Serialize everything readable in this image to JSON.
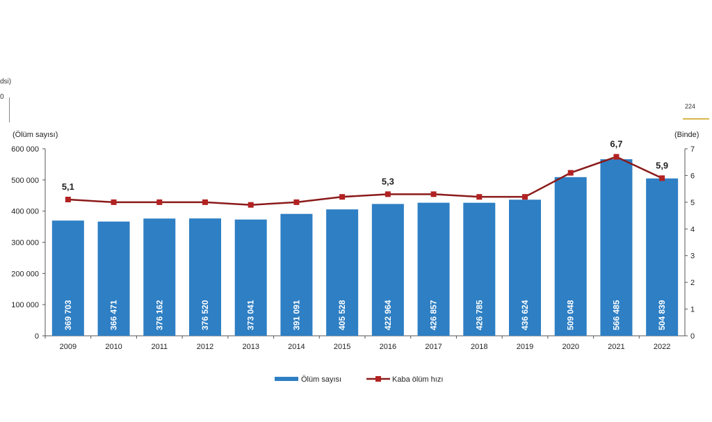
{
  "fragments": {
    "top_left_label": "dsi)",
    "top_left_value": "0",
    "top_right_value": "224"
  },
  "chart_data": {
    "type": "bar+line",
    "categories": [
      "2009",
      "2010",
      "2011",
      "2012",
      "2013",
      "2014",
      "2015",
      "2016",
      "2017",
      "2018",
      "2019",
      "2020",
      "2021",
      "2022"
    ],
    "series": [
      {
        "name": "Ölüm sayısı",
        "type": "bar",
        "axis": "left",
        "color": "#2e7fc4",
        "values": [
          369703,
          366471,
          376162,
          376520,
          373041,
          391091,
          405528,
          422964,
          426857,
          426785,
          436624,
          509048,
          566485,
          504839
        ],
        "labels": [
          "369 703",
          "366 471",
          "376 162",
          "376 520",
          "373 041",
          "391 091",
          "405 528",
          "422 964",
          "426 857",
          "426 785",
          "436 624",
          "509 048",
          "566 485",
          "504 839"
        ]
      },
      {
        "name": "Kaba ölüm hızı",
        "type": "line",
        "axis": "right",
        "color": "#8b1a1a",
        "values": [
          5.1,
          5.0,
          5.0,
          5.0,
          4.9,
          5.0,
          5.2,
          5.3,
          5.3,
          5.2,
          5.2,
          6.1,
          6.7,
          5.9
        ],
        "point_labels": {
          "0": "5,1",
          "7": "5,3",
          "12": "6,7",
          "13": "5,9"
        }
      }
    ],
    "ylabel_left": "(Ölüm sayısı)",
    "ylabel_right": "(Binde)",
    "ylim_left": [
      0,
      600000
    ],
    "ylim_right": [
      0,
      7
    ],
    "yticks_left": [
      "0",
      "100 000",
      "200 000",
      "300 000",
      "400 000",
      "500 000",
      "600 000"
    ],
    "yticks_right": [
      "0",
      "1",
      "2",
      "3",
      "4",
      "5",
      "6",
      "7"
    ],
    "grid": false,
    "legend": "bottom"
  }
}
